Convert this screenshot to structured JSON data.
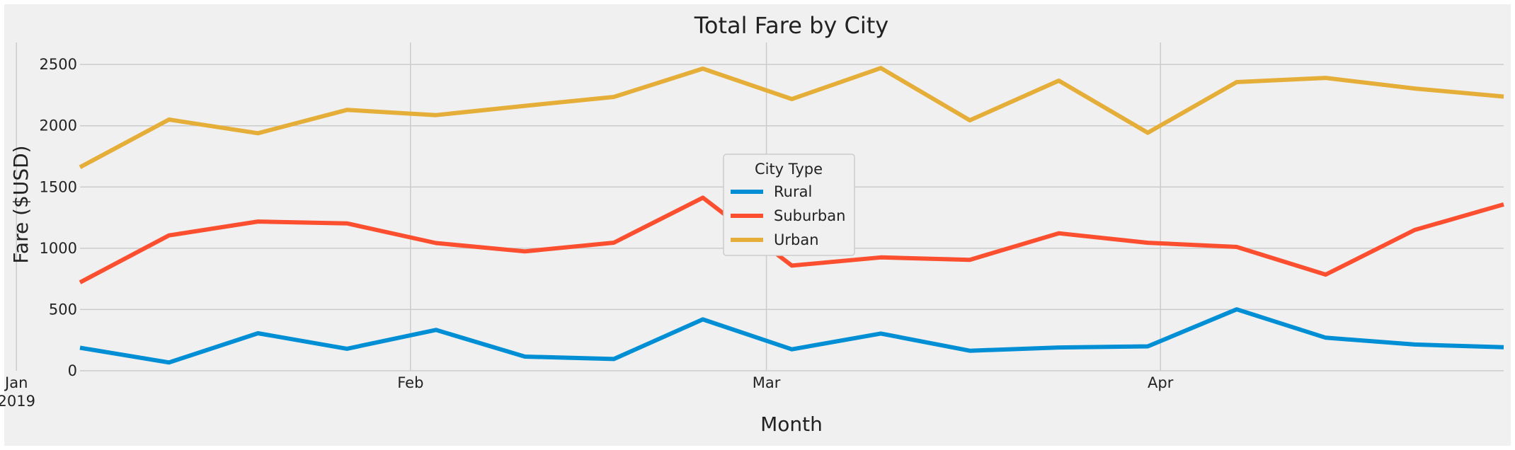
{
  "chart_data": {
    "type": "line",
    "title": "Total Fare by City",
    "xlabel": "Month",
    "ylabel": "Fare ($USD)",
    "x": [
      "2019-01-06",
      "2019-01-13",
      "2019-01-20",
      "2019-01-27",
      "2019-02-03",
      "2019-02-10",
      "2019-02-17",
      "2019-02-24",
      "2019-03-03",
      "2019-03-10",
      "2019-03-17",
      "2019-03-24",
      "2019-03-31",
      "2019-04-07",
      "2019-04-14",
      "2019-04-21",
      "2019-04-28"
    ],
    "xticks": [
      {
        "date": "2019-01-01",
        "label": "Jan",
        "sublabel": "2019"
      },
      {
        "date": "2019-02-01",
        "label": "Feb",
        "sublabel": ""
      },
      {
        "date": "2019-03-01",
        "label": "Mar",
        "sublabel": ""
      },
      {
        "date": "2019-04-01",
        "label": "Apr",
        "sublabel": ""
      }
    ],
    "yticks": [
      0,
      500,
      1000,
      1500,
      2000,
      2500
    ],
    "ylim": [
      0,
      2680
    ],
    "xlim": [
      "2019-01-06",
      "2019-04-28"
    ],
    "grid": true,
    "legend": {
      "title": "City Type",
      "placement": "center"
    },
    "series": [
      {
        "name": "Rural",
        "color": "#008fd5",
        "values": [
          187.92,
          67.65,
          306.0,
          179.69,
          333.08,
          115.8,
          95.82,
          419.06,
          175.14,
          303.94,
          163.39,
          189.76,
          199.42,
          501.24,
          269.79,
          214.14,
          191.85
        ]
      },
      {
        "name": "Suburban",
        "color": "#fc4f30",
        "values": [
          721.6,
          1105.13,
          1218.2,
          1203.28,
          1042.79,
          974.34,
          1045.5,
          1412.74,
          858.46,
          925.27,
          905.87,
          1122.2,
          1045.06,
          1010.73,
          784.82,
          1149.27,
          1357.75
        ]
      },
      {
        "name": "Urban",
        "color": "#e5ae38",
        "values": [
          1661.68,
          2050.43,
          1939.02,
          2129.51,
          2086.94,
          2162.64,
          2235.07,
          2466.29,
          2218.2,
          2470.93,
          2044.42,
          2368.37,
          1942.77,
          2356.7,
          2390.72,
          2303.8,
          2238.29
        ]
      }
    ]
  }
}
